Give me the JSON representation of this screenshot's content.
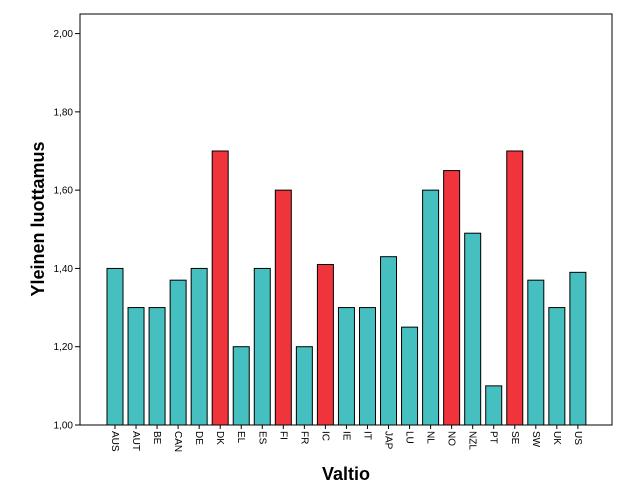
{
  "chart_data": {
    "type": "bar",
    "title": "",
    "xlabel": "Valtio",
    "ylabel": "Yleinen luottamus",
    "ylim": [
      1.0,
      2.05
    ],
    "yticks": [
      "1,00",
      "1,20",
      "1,40",
      "1,60",
      "1,80",
      "2,00"
    ],
    "ytick_values": [
      1.0,
      1.2,
      1.4,
      1.6,
      1.8,
      2.0
    ],
    "grid": false,
    "colors": {
      "default": "#45BFC0",
      "highlight": "#F0343B",
      "stroke": "#000000"
    },
    "categories": [
      "AUS",
      "AUT",
      "BE",
      "CAN",
      "DE",
      "DK",
      "EL",
      "ES",
      "FI",
      "FR",
      "IC",
      "IE",
      "IT",
      "JAP",
      "LU",
      "NL",
      "NO",
      "NZL",
      "PT",
      "SE",
      "SW",
      "UK",
      "US"
    ],
    "values": [
      1.4,
      1.3,
      1.3,
      1.37,
      1.4,
      1.7,
      1.2,
      1.4,
      1.6,
      1.2,
      1.41,
      1.3,
      1.3,
      1.43,
      1.25,
      1.6,
      1.65,
      1.49,
      1.1,
      1.7,
      1.37,
      1.3,
      1.39
    ],
    "highlighted": [
      false,
      false,
      false,
      false,
      false,
      true,
      false,
      false,
      true,
      false,
      true,
      false,
      false,
      false,
      false,
      false,
      true,
      false,
      false,
      true,
      false,
      false,
      false
    ]
  }
}
